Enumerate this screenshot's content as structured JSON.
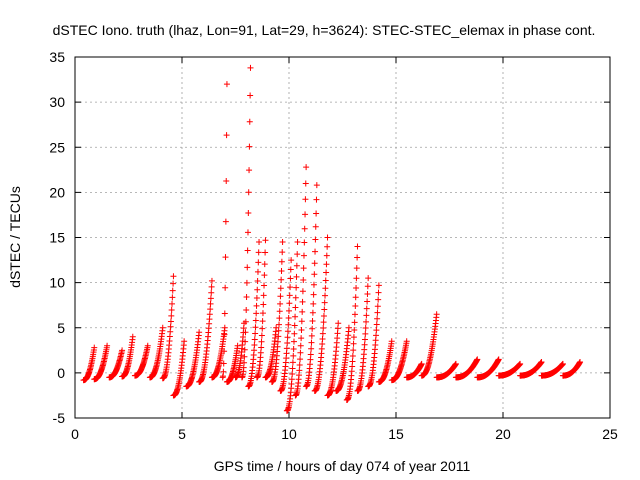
{
  "chart_data": {
    "type": "scatter",
    "title": "dSTEC Iono. truth (lhaz, Lon=91, Lat=29, h=3624): STEC-STEC_elemax in phase cont.",
    "xlabel": "GPS time / hours of day 074 of year 2011",
    "ylabel": "dSTEC  / TECUs",
    "xlim": [
      0,
      25
    ],
    "ylim": [
      -5,
      35
    ],
    "xticks": [
      0,
      5,
      10,
      15,
      20,
      25
    ],
    "yticks": [
      -5,
      0,
      5,
      10,
      15,
      20,
      25,
      30,
      35
    ],
    "grid": true,
    "marker": "plus",
    "series_color": "#ff0000",
    "arcs": [
      {
        "start": 0.4,
        "end": 0.9,
        "min": -0.8,
        "peak": 2.8
      },
      {
        "start": 0.9,
        "end": 1.5,
        "min": -0.7,
        "peak": 3.0
      },
      {
        "start": 1.6,
        "end": 2.2,
        "min": -0.5,
        "peak": 2.5
      },
      {
        "start": 2.2,
        "end": 2.7,
        "min": -0.4,
        "peak": 4.0
      },
      {
        "start": 2.8,
        "end": 3.4,
        "min": -0.3,
        "peak": 3.0
      },
      {
        "start": 3.5,
        "end": 4.1,
        "min": -0.5,
        "peak": 5.0
      },
      {
        "start": 4.1,
        "end": 4.6,
        "min": -0.6,
        "peak": 10.7
      },
      {
        "start": 4.6,
        "end": 5.1,
        "min": -2.5,
        "peak": 3.5
      },
      {
        "start": 5.2,
        "end": 5.8,
        "min": -1.5,
        "peak": 4.5
      },
      {
        "start": 5.8,
        "end": 6.4,
        "min": -1.0,
        "peak": 10.2
      },
      {
        "start": 6.4,
        "end": 7.0,
        "min": -0.5,
        "peak": 5.0
      },
      {
        "start": 6.9,
        "end": 7.1,
        "min": -0.5,
        "peak": 32.0
      },
      {
        "start": 7.1,
        "end": 7.6,
        "min": -1.0,
        "peak": 3.0
      },
      {
        "start": 7.5,
        "end": 7.9,
        "min": -0.5,
        "peak": 5.5
      },
      {
        "start": 7.8,
        "end": 8.2,
        "min": -0.5,
        "peak": 33.8
      },
      {
        "start": 8.1,
        "end": 8.6,
        "min": -1.5,
        "peak": 14.5
      },
      {
        "start": 8.5,
        "end": 8.9,
        "min": -0.5,
        "peak": 14.7
      },
      {
        "start": 8.9,
        "end": 9.4,
        "min": -0.5,
        "peak": 5.0
      },
      {
        "start": 9.2,
        "end": 9.7,
        "min": -1.0,
        "peak": 14.5
      },
      {
        "start": 9.6,
        "end": 10.1,
        "min": -2.0,
        "peak": 12.5
      },
      {
        "start": 9.9,
        "end": 10.4,
        "min": -4.2,
        "peak": 14.5
      },
      {
        "start": 10.3,
        "end": 10.8,
        "min": -2.5,
        "peak": 22.8
      },
      {
        "start": 10.8,
        "end": 11.3,
        "min": -1.5,
        "peak": 20.8
      },
      {
        "start": 11.2,
        "end": 11.8,
        "min": -2.0,
        "peak": 15.0
      },
      {
        "start": 11.8,
        "end": 12.3,
        "min": -2.5,
        "peak": 5.5
      },
      {
        "start": 12.2,
        "end": 12.8,
        "min": -2.0,
        "peak": 5.0
      },
      {
        "start": 12.7,
        "end": 13.2,
        "min": -3.0,
        "peak": 14.0
      },
      {
        "start": 13.2,
        "end": 13.7,
        "min": -2.0,
        "peak": 10.5
      },
      {
        "start": 13.7,
        "end": 14.2,
        "min": -1.5,
        "peak": 9.7
      },
      {
        "start": 14.2,
        "end": 14.8,
        "min": -1.0,
        "peak": 3.5
      },
      {
        "start": 14.8,
        "end": 15.5,
        "min": -0.8,
        "peak": 3.5
      },
      {
        "start": 15.5,
        "end": 16.2,
        "min": -0.5,
        "peak": 1.0
      },
      {
        "start": 16.2,
        "end": 16.9,
        "min": -0.3,
        "peak": 6.5
      },
      {
        "start": 16.9,
        "end": 17.8,
        "min": -0.5,
        "peak": 1.0
      },
      {
        "start": 17.8,
        "end": 18.8,
        "min": -0.5,
        "peak": 1.5
      },
      {
        "start": 18.8,
        "end": 19.8,
        "min": -0.5,
        "peak": 1.5
      },
      {
        "start": 19.8,
        "end": 20.8,
        "min": -0.3,
        "peak": 1.0
      },
      {
        "start": 20.8,
        "end": 21.8,
        "min": -0.3,
        "peak": 1.2
      },
      {
        "start": 21.8,
        "end": 22.8,
        "min": -0.3,
        "peak": 1.0
      },
      {
        "start": 22.8,
        "end": 23.6,
        "min": -0.3,
        "peak": 1.2
      }
    ]
  }
}
